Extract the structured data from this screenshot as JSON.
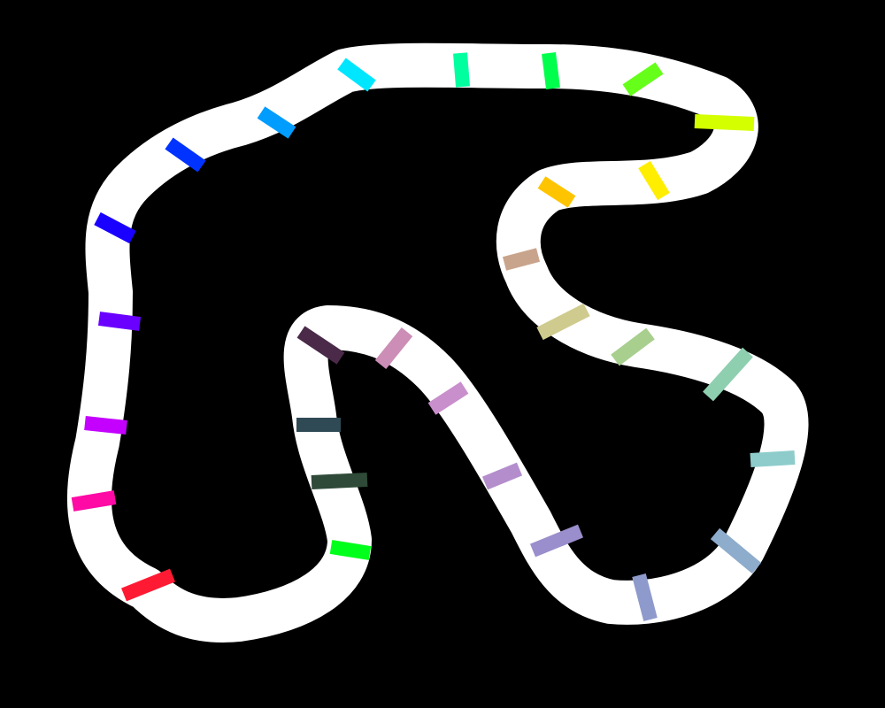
{
  "scene": {
    "background_color": "#000000",
    "track_color": "#ffffff"
  },
  "checkpoints": [
    {
      "id": 1,
      "color": "#ff1a33"
    },
    {
      "id": 2,
      "color": "#ff0aa5"
    },
    {
      "id": 3,
      "color": "#c400ff"
    },
    {
      "id": 4,
      "color": "#6a00ff"
    },
    {
      "id": 5,
      "color": "#1a00ff"
    },
    {
      "id": 6,
      "color": "#0033ff"
    },
    {
      "id": 7,
      "color": "#009dff"
    },
    {
      "id": 8,
      "color": "#00e6ff"
    },
    {
      "id": 9,
      "color": "#00ff9e"
    },
    {
      "id": 10,
      "color": "#00ff4c"
    },
    {
      "id": 11,
      "color": "#66ff1a"
    },
    {
      "id": 12,
      "color": "#d4ff00"
    },
    {
      "id": 13,
      "color": "#ffee00"
    },
    {
      "id": 14,
      "color": "#ffc400"
    },
    {
      "id": 15,
      "color": "#c9a48c"
    },
    {
      "id": 16,
      "color": "#cfcb8e"
    },
    {
      "id": 17,
      "color": "#a8cf8e"
    },
    {
      "id": 18,
      "color": "#8ecfb0"
    },
    {
      "id": 19,
      "color": "#8ecccc"
    },
    {
      "id": 20,
      "color": "#8eaccc"
    },
    {
      "id": 21,
      "color": "#8e9acc"
    },
    {
      "id": 22,
      "color": "#9a8ecc"
    },
    {
      "id": 23,
      "color": "#b48ecc"
    },
    {
      "id": 24,
      "color": "#c98ecc"
    },
    {
      "id": 25,
      "color": "#cc8eb6"
    },
    {
      "id": 26,
      "color": "#4a2a48"
    },
    {
      "id": 27,
      "color": "#2f4a55"
    },
    {
      "id": 28,
      "color": "#2f4a38"
    },
    {
      "id": 29,
      "color": "#00ff1a"
    }
  ]
}
